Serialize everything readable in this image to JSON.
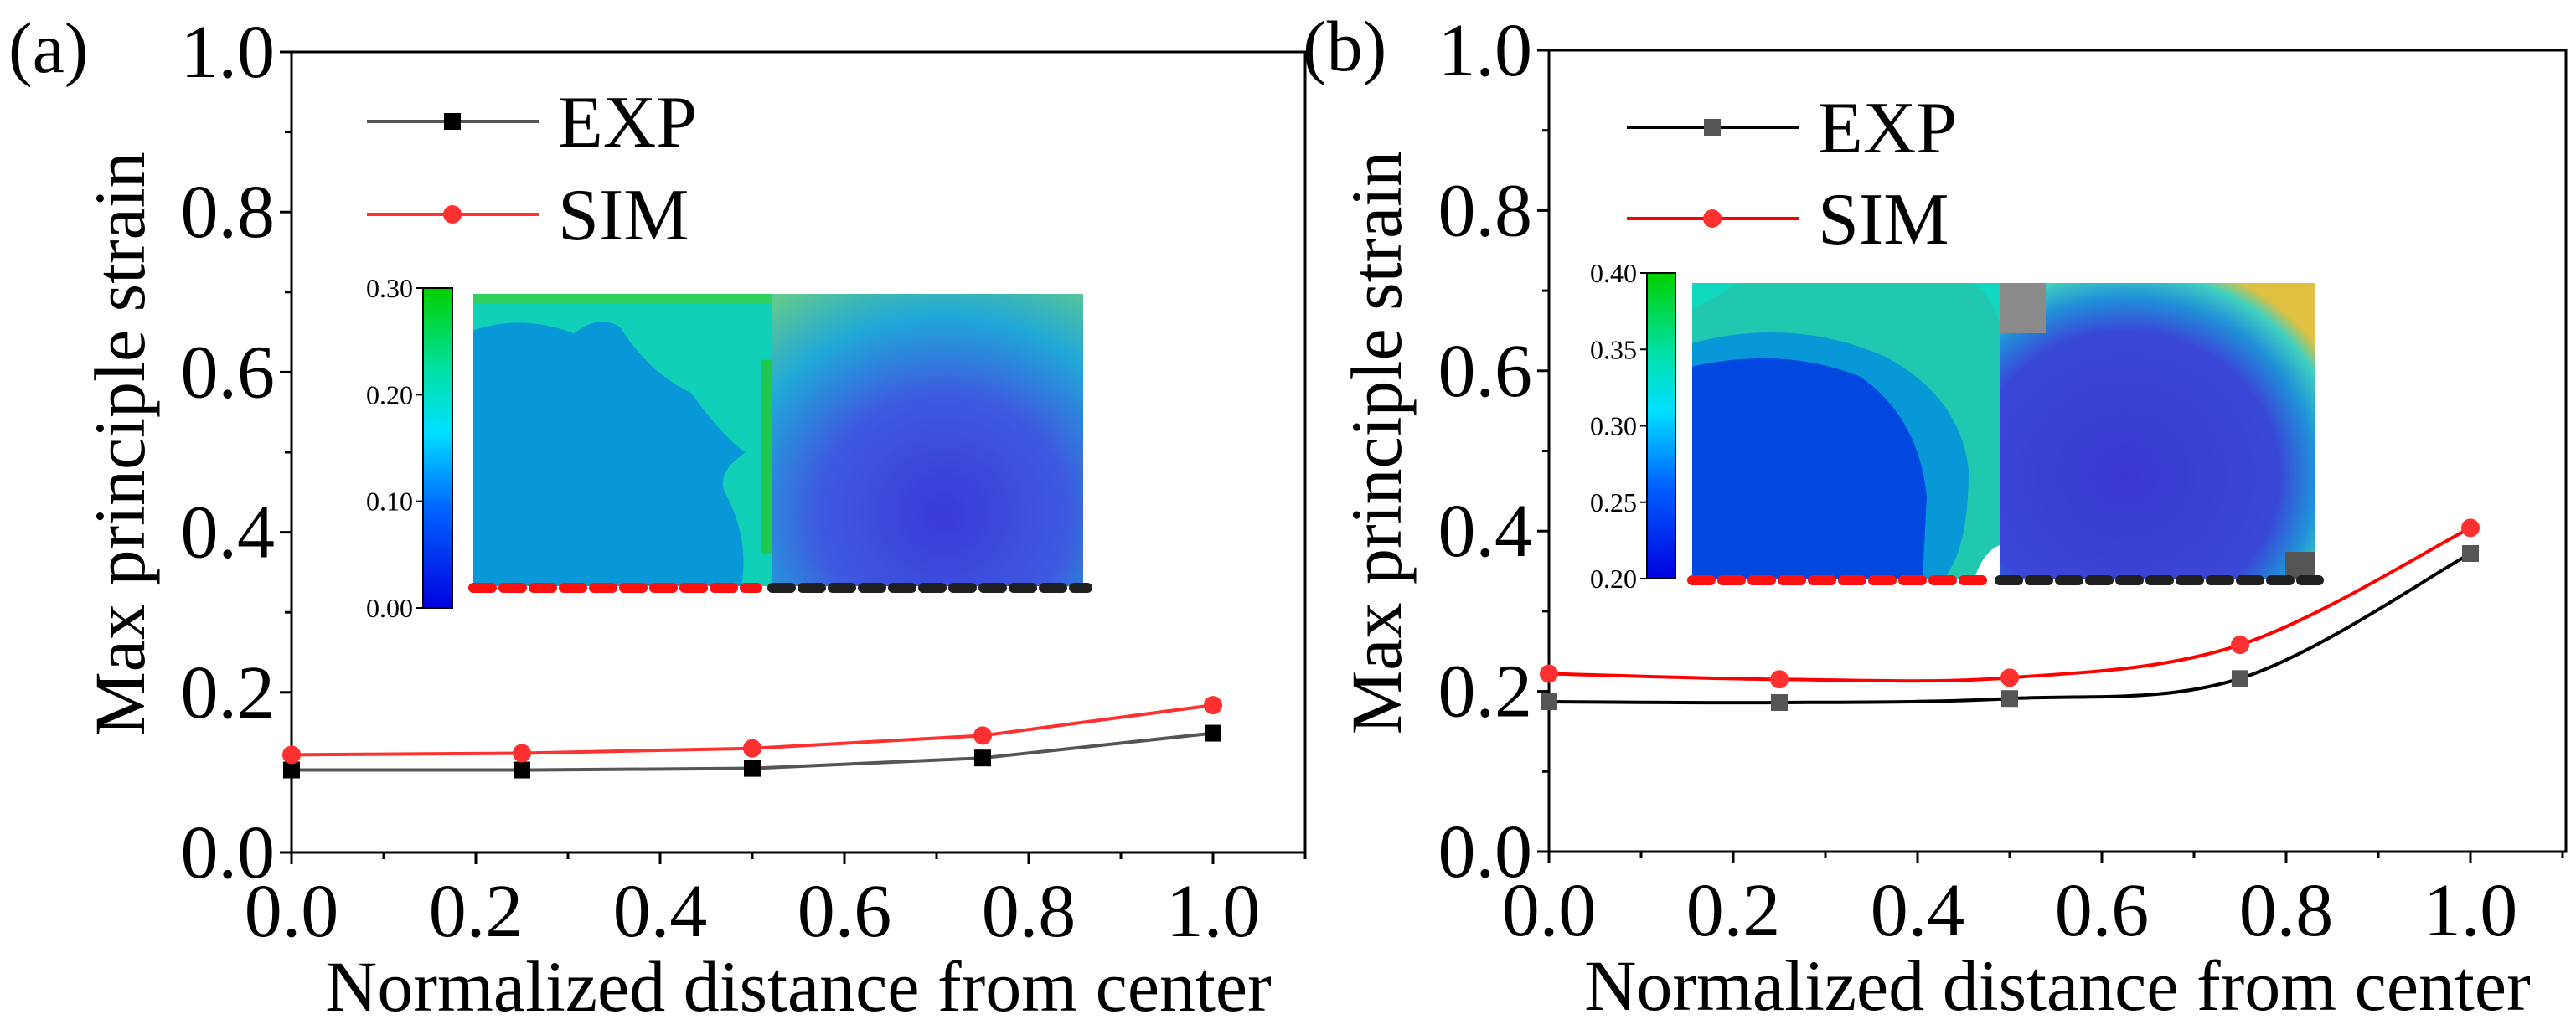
{
  "chart_data": [
    {
      "panel_label": "(a)",
      "type": "line",
      "xlabel": "Normalized distance from center",
      "ylabel": "Max principle strain",
      "xlim": [
        0,
        1.1
      ],
      "ylim": [
        0,
        1.0
      ],
      "xticks": [
        "0.0",
        "0.2",
        "0.4",
        "0.6",
        "0.8",
        "1.0"
      ],
      "yticks": [
        "0.0",
        "0.2",
        "0.4",
        "0.6",
        "0.8",
        "1.0"
      ],
      "legend_position": "top-left",
      "smooth": false,
      "x": [
        0,
        0.25,
        0.5,
        0.75,
        1.0
      ],
      "series": [
        {
          "name": "EXP",
          "color": "#000000",
          "line_color": "#555555",
          "marker": "square",
          "values": [
            0.103,
            0.103,
            0.105,
            0.118,
            0.149
          ]
        },
        {
          "name": "SIM",
          "color": "#ff3030",
          "line_color": "#ff3030",
          "marker": "circle",
          "values": [
            0.122,
            0.124,
            0.13,
            0.146,
            0.184
          ]
        }
      ],
      "inset": {
        "colorbar_ticks": [
          "0.30",
          "0.20",
          "0.10",
          "0.00"
        ],
        "colorbar_range": [
          0.0,
          0.3
        ]
      }
    },
    {
      "panel_label": "(b)",
      "type": "line",
      "xlabel": "Normalized distance from center",
      "ylabel": "Max principle strain",
      "xlim": [
        0,
        1.1
      ],
      "ylim": [
        0,
        1.0
      ],
      "xticks": [
        "0.0",
        "0.2",
        "0.4",
        "0.6",
        "0.8",
        "1.0"
      ],
      "yticks": [
        "0.0",
        "0.2",
        "0.4",
        "0.6",
        "0.8",
        "1.0"
      ],
      "legend_position": "top-left",
      "smooth": true,
      "x": [
        0,
        0.25,
        0.5,
        0.75,
        1.0
      ],
      "series": [
        {
          "name": "EXP",
          "color": "#555555",
          "line_color": "#000000",
          "marker": "square",
          "values": [
            0.187,
            0.186,
            0.191,
            0.216,
            0.372
          ]
        },
        {
          "name": "SIM",
          "color": "#ff3030",
          "line_color": "#ff0000",
          "marker": "circle",
          "values": [
            0.222,
            0.215,
            0.217,
            0.258,
            0.404
          ]
        }
      ],
      "inset": {
        "colorbar_ticks": [
          "0.40",
          "0.35",
          "0.30",
          "0.25",
          "0.20"
        ],
        "colorbar_range": [
          0.2,
          0.4
        ]
      }
    }
  ]
}
